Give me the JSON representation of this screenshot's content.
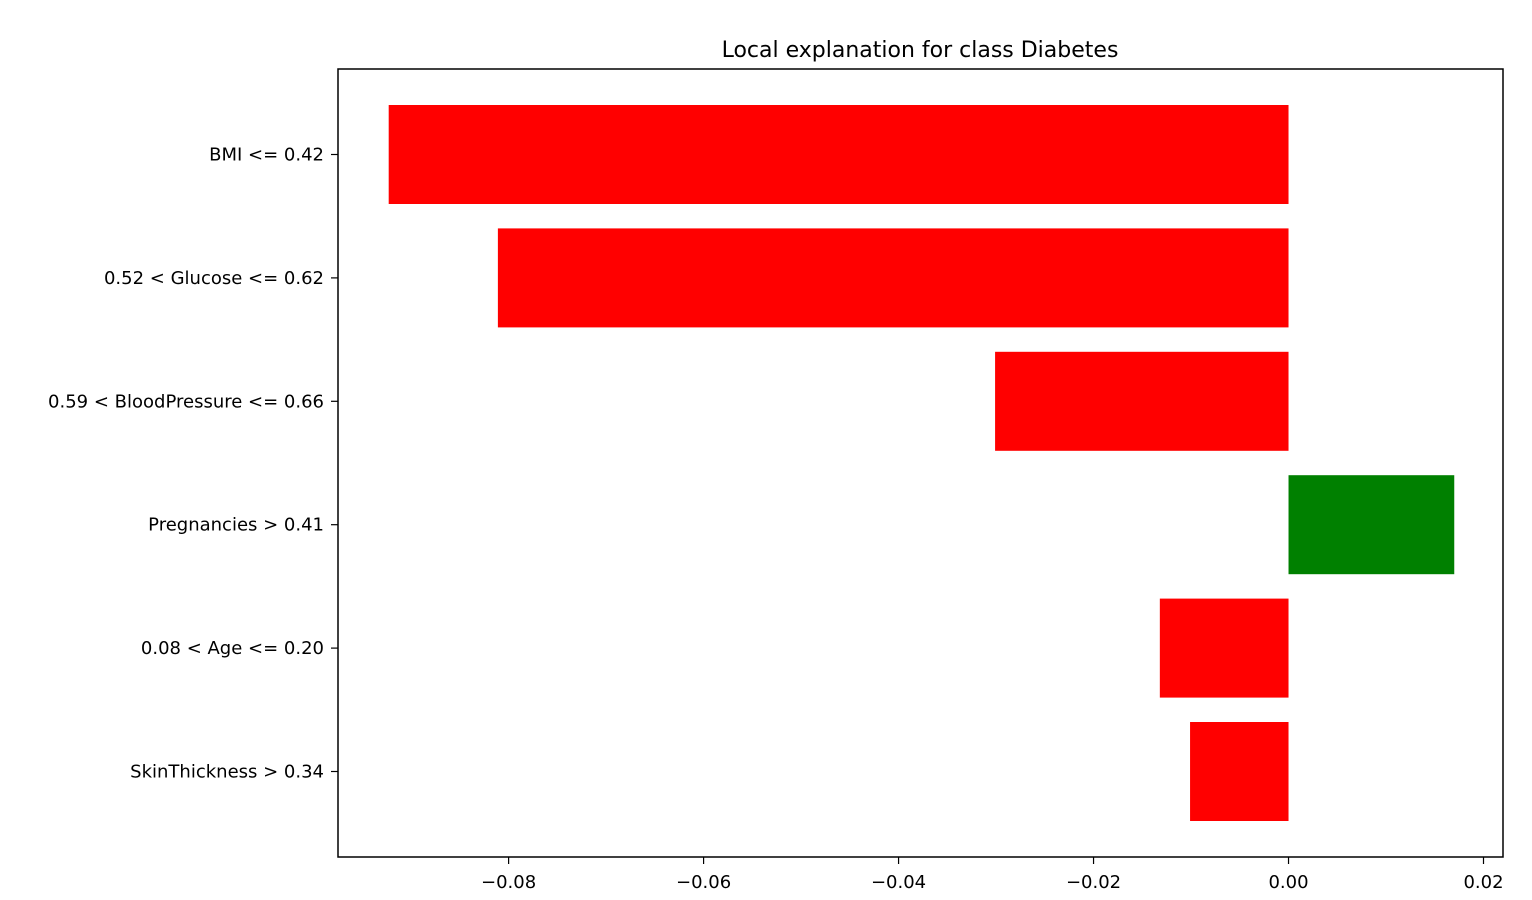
{
  "chart_data": {
    "type": "bar",
    "orientation": "horizontal",
    "title": "Local explanation for class Diabetes",
    "xlabel": "",
    "ylabel": "",
    "categories": [
      "BMI <= 0.42",
      "0.52 < Glucose <= 0.62",
      "0.59 < BloodPressure <= 0.66",
      "Pregnancies > 0.41",
      "0.08 < Age <= 0.20",
      "SkinThickness > 0.34"
    ],
    "values": [
      -0.0923,
      -0.0811,
      -0.0301,
      0.017,
      -0.0132,
      -0.0101
    ],
    "xlim": [
      -0.0975,
      0.022
    ],
    "xticks": [
      -0.08,
      -0.06,
      -0.04,
      -0.02,
      0.0,
      0.02
    ],
    "xtick_labels": [
      "−0.08",
      "−0.06",
      "−0.04",
      "−0.02",
      "0.00",
      "0.02"
    ],
    "grid": false,
    "legend": "none",
    "colors": {
      "positive": "#008000",
      "negative": "#ff0000",
      "axis": "#000000"
    }
  }
}
